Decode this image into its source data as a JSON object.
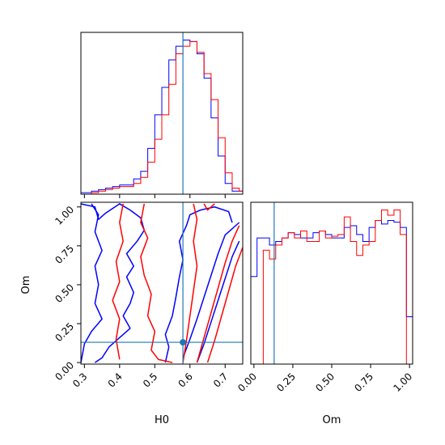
{
  "chart_data": {
    "type": "corner",
    "parameters": [
      "H0",
      "Om"
    ],
    "truth": {
      "H0": 0.58,
      "Om": 0.13
    },
    "truth_color": "#1f77b4",
    "series_colors": [
      "#0000ff",
      "#ff0000"
    ],
    "panels": [
      {
        "id": "h0-hist",
        "type": "step-histogram",
        "x_range": [
          0.29,
          0.75
        ],
        "x_ticks": [
          0.3,
          0.4,
          0.5,
          0.6,
          0.7
        ],
        "bins": [
          0.29,
          0.3,
          0.32,
          0.34,
          0.36,
          0.38,
          0.4,
          0.42,
          0.44,
          0.46,
          0.48,
          0.5,
          0.52,
          0.54,
          0.56,
          0.58,
          0.6,
          0.62,
          0.64,
          0.66,
          0.68,
          0.7,
          0.72,
          0.74,
          0.75
        ],
        "series": [
          {
            "color": "#0000ff",
            "values": [
              1,
              1,
              2,
              3,
              4,
              5,
              6,
              6,
              10,
              15,
              30,
              52,
              70,
              88,
              97,
              101,
              100,
              92,
              76,
              50,
              25,
              7,
              2,
              2
            ]
          },
          {
            "color": "#ff0000",
            "values": [
              0,
              0,
              1,
              2,
              3,
              4,
              5,
              5,
              7,
              11,
              21,
              36,
              52,
              72,
              92,
              97,
              100,
              93,
              79,
              62,
              37,
              14,
              4,
              2
            ]
          }
        ]
      },
      {
        "id": "om-hist",
        "type": "step-histogram",
        "x_range": [
          -0.02,
          1.02
        ],
        "x_ticks": [
          "0.00",
          "0.25",
          "0.50",
          "0.75",
          "1.00"
        ],
        "bins": [
          -0.02,
          0.02,
          0.06,
          0.1,
          0.14,
          0.18,
          0.22,
          0.26,
          0.3,
          0.34,
          0.38,
          0.42,
          0.46,
          0.5,
          0.54,
          0.58,
          0.62,
          0.66,
          0.7,
          0.74,
          0.78,
          0.82,
          0.86,
          0.9,
          0.94,
          0.98,
          1.02
        ],
        "series": [
          {
            "color": "#0000ff",
            "values": [
              50,
              72,
              72,
              68,
              70,
              72,
              75,
              74,
              72,
              72,
              75,
              76,
              74,
              72,
              72,
              78,
              79,
              74,
              70,
              78,
              82,
              80,
              82,
              81,
              78,
              27
            ]
          },
          {
            "color": "#ff0000",
            "values": [
              0,
              0,
              65,
              60,
              68,
              72,
              75,
              72,
              76,
              70,
              70,
              76,
              72,
              73,
              74,
              84,
              70,
              62,
              68,
              70,
              82,
              88,
              85,
              88,
              74,
              0
            ]
          }
        ]
      },
      {
        "id": "joint",
        "type": "contour",
        "x_range": [
          0.29,
          0.75
        ],
        "y_range": [
          -0.01,
          1.03
        ],
        "x_ticks": [
          0.3,
          0.4,
          0.5,
          0.6,
          0.7
        ],
        "y_ticks": [
          "0.00",
          "0.25",
          "0.50",
          "0.75",
          "1.00"
        ],
        "contours": [
          {
            "color": "#0000ff",
            "points": [
              [
                0.29,
                1.02
              ],
              [
                0.33,
                1.0
              ],
              [
                0.34,
                0.92
              ],
              [
                0.36,
                0.96
              ],
              [
                0.4,
                1.02
              ],
              [
                0.43,
                0.98
              ],
              [
                0.46,
                0.93
              ],
              [
                0.47,
                0.85
              ],
              [
                0.45,
                0.78
              ],
              [
                0.42,
                0.7
              ],
              [
                0.44,
                0.62
              ],
              [
                0.42,
                0.55
              ],
              [
                0.44,
                0.45
              ],
              [
                0.43,
                0.38
              ],
              [
                0.41,
                0.3
              ],
              [
                0.43,
                0.22
              ],
              [
                0.4,
                0.16
              ],
              [
                0.37,
                0.1
              ],
              [
                0.35,
                0.03
              ],
              [
                0.33,
                0.0
              ]
            ]
          },
          {
            "color": "#0000ff",
            "points": [
              [
                0.29,
                0.0
              ],
              [
                0.3,
                0.12
              ],
              [
                0.32,
                0.2
              ],
              [
                0.35,
                0.28
              ],
              [
                0.33,
                0.38
              ],
              [
                0.34,
                0.5
              ],
              [
                0.33,
                0.62
              ],
              [
                0.35,
                0.72
              ],
              [
                0.33,
                0.84
              ],
              [
                0.34,
                0.95
              ],
              [
                0.32,
                1.02
              ]
            ]
          },
          {
            "color": "#0000ff",
            "points": [
              [
                0.53,
                0.0
              ],
              [
                0.54,
                0.1
              ],
              [
                0.53,
                0.18
              ],
              [
                0.55,
                0.3
              ],
              [
                0.56,
                0.42
              ],
              [
                0.57,
                0.55
              ],
              [
                0.58,
                0.66
              ],
              [
                0.57,
                0.78
              ],
              [
                0.59,
                0.88
              ],
              [
                0.6,
                0.95
              ],
              [
                0.63,
                0.98
              ],
              [
                0.67,
                1.0
              ],
              [
                0.71,
                0.97
              ],
              [
                0.72,
                0.9
              ]
            ]
          },
          {
            "color": "#0000ff",
            "points": [
              [
                0.58,
                0.03
              ],
              [
                0.6,
                0.15
              ],
              [
                0.62,
                0.28
              ],
              [
                0.64,
                0.42
              ],
              [
                0.66,
                0.56
              ],
              [
                0.68,
                0.7
              ],
              [
                0.7,
                0.82
              ],
              [
                0.74,
                0.9
              ]
            ]
          },
          {
            "color": "#0000ff",
            "points": [
              [
                0.62,
                0.0
              ],
              [
                0.64,
                0.12
              ],
              [
                0.66,
                0.26
              ],
              [
                0.68,
                0.4
              ],
              [
                0.7,
                0.54
              ],
              [
                0.72,
                0.68
              ],
              [
                0.74,
                0.78
              ]
            ]
          },
          {
            "color": "#ff0000",
            "points": [
              [
                0.41,
                1.02
              ],
              [
                0.4,
                0.9
              ],
              [
                0.41,
                0.78
              ],
              [
                0.39,
                0.65
              ],
              [
                0.4,
                0.52
              ],
              [
                0.38,
                0.4
              ],
              [
                0.4,
                0.28
              ],
              [
                0.39,
                0.15
              ],
              [
                0.4,
                0.02
              ]
            ]
          },
          {
            "color": "#ff0000",
            "points": [
              [
                0.47,
                1.02
              ],
              [
                0.46,
                0.9
              ],
              [
                0.48,
                0.8
              ],
              [
                0.46,
                0.68
              ],
              [
                0.47,
                0.56
              ],
              [
                0.49,
                0.44
              ],
              [
                0.48,
                0.3
              ],
              [
                0.5,
                0.2
              ],
              [
                0.49,
                0.08
              ],
              [
                0.51,
                0.02
              ],
              [
                0.55,
                0.0
              ]
            ]
          },
          {
            "color": "#ff0000",
            "points": [
              [
                0.58,
                0.0
              ],
              [
                0.59,
                0.14
              ],
              [
                0.6,
                0.3
              ],
              [
                0.61,
                0.46
              ],
              [
                0.62,
                0.62
              ],
              [
                0.61,
                0.78
              ],
              [
                0.62,
                0.92
              ],
              [
                0.61,
                1.02
              ]
            ]
          },
          {
            "color": "#ff0000",
            "points": [
              [
                0.62,
                0.0
              ],
              [
                0.64,
                0.16
              ],
              [
                0.66,
                0.32
              ],
              [
                0.68,
                0.48
              ],
              [
                0.7,
                0.64
              ],
              [
                0.72,
                0.78
              ],
              [
                0.74,
                0.88
              ]
            ]
          },
          {
            "color": "#ff0000",
            "points": [
              [
                0.65,
                0.0
              ],
              [
                0.67,
                0.14
              ],
              [
                0.69,
                0.3
              ],
              [
                0.71,
                0.46
              ],
              [
                0.73,
                0.62
              ],
              [
                0.75,
                0.74
              ]
            ]
          },
          {
            "color": "#ff0000",
            "points": [
              [
                0.64,
                1.02
              ],
              [
                0.65,
                0.98
              ],
              [
                0.67,
                1.02
              ]
            ]
          }
        ]
      }
    ],
    "xlabels": [
      "H0",
      "Om"
    ],
    "ylabels": [
      "Om"
    ]
  }
}
